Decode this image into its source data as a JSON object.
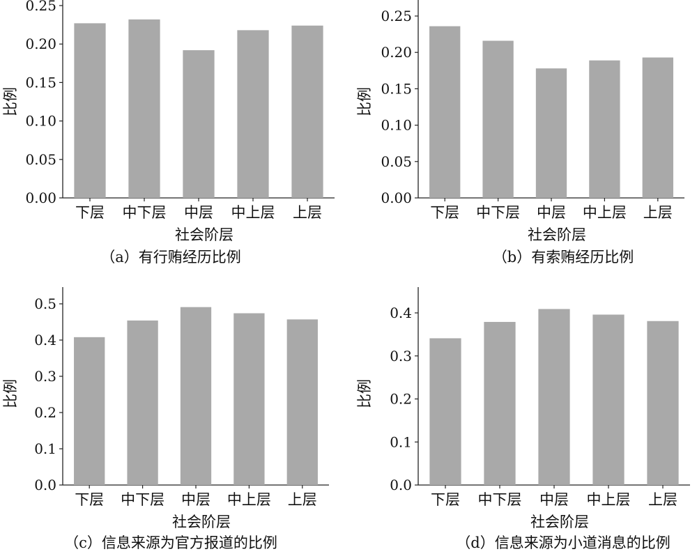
{
  "chart_data": [
    {
      "type": "bar",
      "caption": "（a）有行贿经历比例",
      "categories": [
        "下层",
        "中下层",
        "中层",
        "中上层",
        "上层"
      ],
      "values": [
        0.227,
        0.232,
        0.192,
        0.218,
        0.224
      ],
      "xlabel": "社会阶层",
      "ylabel": "比例",
      "ylim": [
        0,
        0.25
      ],
      "yticks": [
        "0.00",
        "0.05",
        "0.10",
        "0.15",
        "0.20",
        "0.25"
      ],
      "grid": false,
      "bar_color": "#a9a9a9"
    },
    {
      "type": "bar",
      "caption": "（b）有索贿经历比例",
      "categories": [
        "下层",
        "中下层",
        "中层",
        "中上层",
        "上层"
      ],
      "values": [
        0.236,
        0.216,
        0.178,
        0.189,
        0.193
      ],
      "xlabel": "社会阶层",
      "ylabel": "比例",
      "ylim": [
        0,
        0.25
      ],
      "yticks": [
        "0.00",
        "0.05",
        "0.10",
        "0.15",
        "0.20",
        "0.25"
      ],
      "grid": false,
      "bar_color": "#a9a9a9"
    },
    {
      "type": "bar",
      "caption": "（c）信息来源为官方报道的比例",
      "categories": [
        "下层",
        "中下层",
        "中层",
        "中上层",
        "上层"
      ],
      "values": [
        0.408,
        0.454,
        0.491,
        0.474,
        0.457
      ],
      "xlabel": "社会阶层",
      "ylabel": "比例",
      "ylim": [
        0,
        0.5
      ],
      "yticks": [
        "0.0",
        "0.1",
        "0.2",
        "0.3",
        "0.4",
        "0.5"
      ],
      "grid": false,
      "bar_color": "#a9a9a9"
    },
    {
      "type": "bar",
      "caption": "（d）信息来源为小道消息的比例",
      "categories": [
        "下层",
        "中下层",
        "中层",
        "中上层",
        "上层"
      ],
      "values": [
        0.341,
        0.379,
        0.409,
        0.396,
        0.381
      ],
      "xlabel": "社会阶层",
      "ylabel": "比例",
      "ylim": [
        0,
        0.4
      ],
      "yticks": [
        "0.0",
        "0.1",
        "0.2",
        "0.3",
        "0.4"
      ],
      "grid": false,
      "bar_color": "#a9a9a9"
    }
  ]
}
